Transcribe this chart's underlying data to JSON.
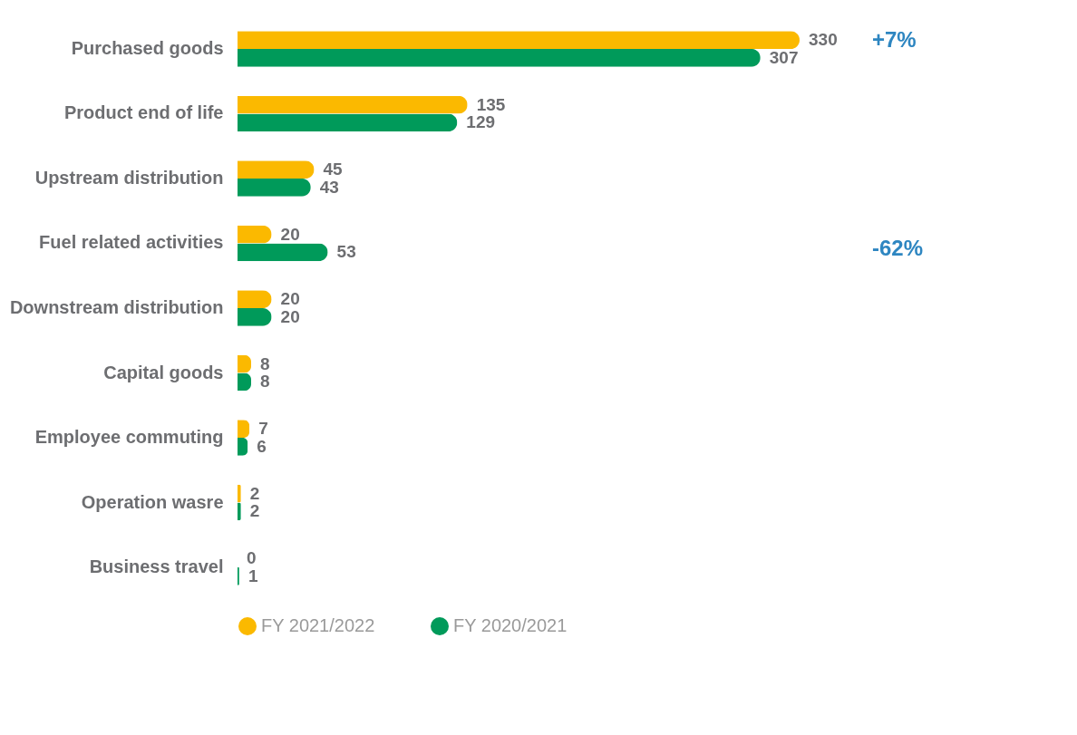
{
  "chart_data": {
    "type": "bar",
    "orientation": "horizontal",
    "categories": [
      "Purchased goods",
      "Product end of life",
      "Upstream distribution",
      "Fuel related activities",
      "Downstream distribution",
      "Capital goods",
      "Employee commuting",
      "Operation wasre",
      "Business travel"
    ],
    "series": [
      {
        "name": "FY 2021/2022",
        "color": "#fbb900",
        "values": [
          330,
          135,
          45,
          20,
          20,
          8,
          7,
          2,
          0
        ]
      },
      {
        "name": "FY 2020/2021",
        "color": "#009a5a",
        "values": [
          307,
          129,
          43,
          53,
          20,
          8,
          6,
          2,
          1
        ]
      }
    ],
    "data_labels": true,
    "legend": "bottom left",
    "annotations": [
      "+7%",
      "-62%"
    ]
  }
}
